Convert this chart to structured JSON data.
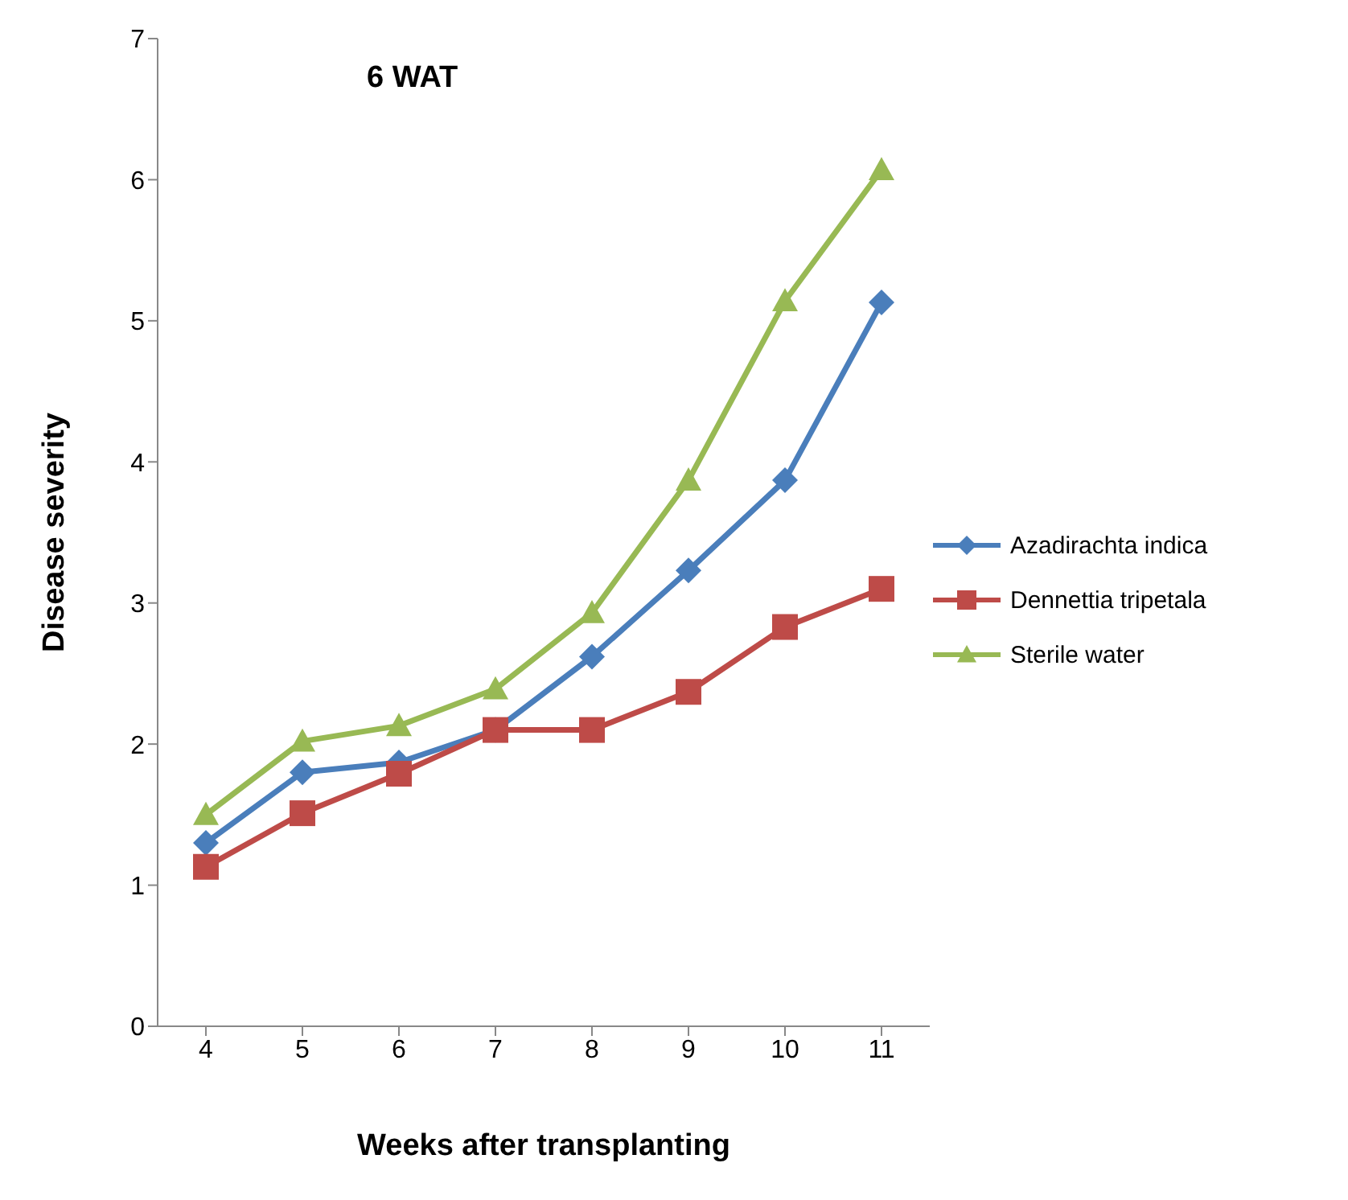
{
  "chart_data": {
    "type": "line",
    "title": "6 WAT",
    "xlabel": "Weeks after transplanting",
    "ylabel": "Disease severity",
    "categories": [
      "4",
      "5",
      "6",
      "7",
      "8",
      "9",
      "10",
      "11"
    ],
    "series": [
      {
        "name": "Azadirachta indica",
        "color": "#4a7ebb",
        "marker": "diamond",
        "values": [
          1.3,
          1.8,
          1.87,
          2.1,
          2.62,
          3.23,
          3.87,
          5.13
        ]
      },
      {
        "name": "Dennettia tripetala",
        "color": "#be4b48",
        "marker": "square",
        "values": [
          1.13,
          1.51,
          1.79,
          2.1,
          2.1,
          2.37,
          2.83,
          3.1
        ]
      },
      {
        "name": "Sterile water",
        "color": "#98b954",
        "marker": "triangle",
        "values": [
          1.5,
          2.02,
          2.13,
          2.39,
          2.93,
          3.87,
          5.14,
          6.07
        ]
      }
    ],
    "ylim": [
      0,
      7
    ],
    "yticks": [
      0,
      1,
      2,
      3,
      4,
      5,
      6,
      7
    ],
    "legend": "right",
    "line_style": "solid"
  }
}
